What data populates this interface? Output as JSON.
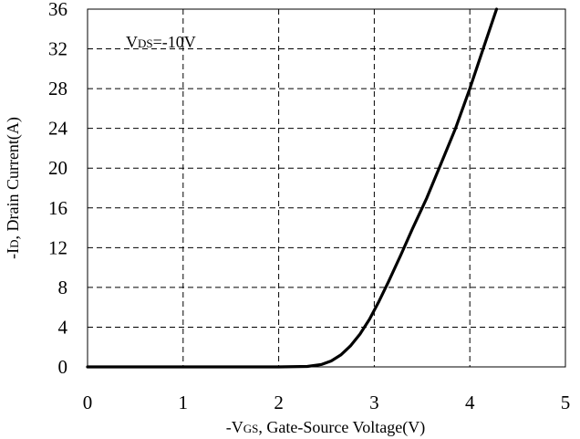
{
  "chart_data": {
    "type": "line",
    "xlabel": {
      "prefix": "-V",
      "subscript": "GS",
      "rest": ", Gate-Source Voltage(V)"
    },
    "ylabel": {
      "prefix": "-I",
      "subscript": "D",
      "rest": ", Drain Current(A)"
    },
    "annotation": {
      "prefix": "V",
      "subscript": "DS",
      "rest": "=-10V"
    },
    "xlim": [
      0,
      5
    ],
    "ylim": [
      0,
      36
    ],
    "x_ticks": [
      "0",
      "1",
      "2",
      "3",
      "4",
      "5"
    ],
    "y_ticks": [
      "0",
      "4",
      "8",
      "12",
      "16",
      "20",
      "24",
      "28",
      "32",
      "36"
    ],
    "grid": true,
    "grid_style": "dashed",
    "line_color": "#000000",
    "series": [
      {
        "x": [
          0,
          1.0,
          2.0,
          2.3,
          2.45,
          2.55,
          2.65,
          2.75,
          2.85,
          2.95,
          3.05,
          3.15,
          3.28,
          3.4,
          3.55,
          3.7,
          3.85,
          4.0,
          4.15,
          4.28
        ],
        "y": [
          0,
          0,
          0,
          0.05,
          0.25,
          0.6,
          1.2,
          2.1,
          3.3,
          4.8,
          6.6,
          8.6,
          11.3,
          13.9,
          17.0,
          20.5,
          24.0,
          28.0,
          32.3,
          36.0
        ]
      }
    ]
  }
}
